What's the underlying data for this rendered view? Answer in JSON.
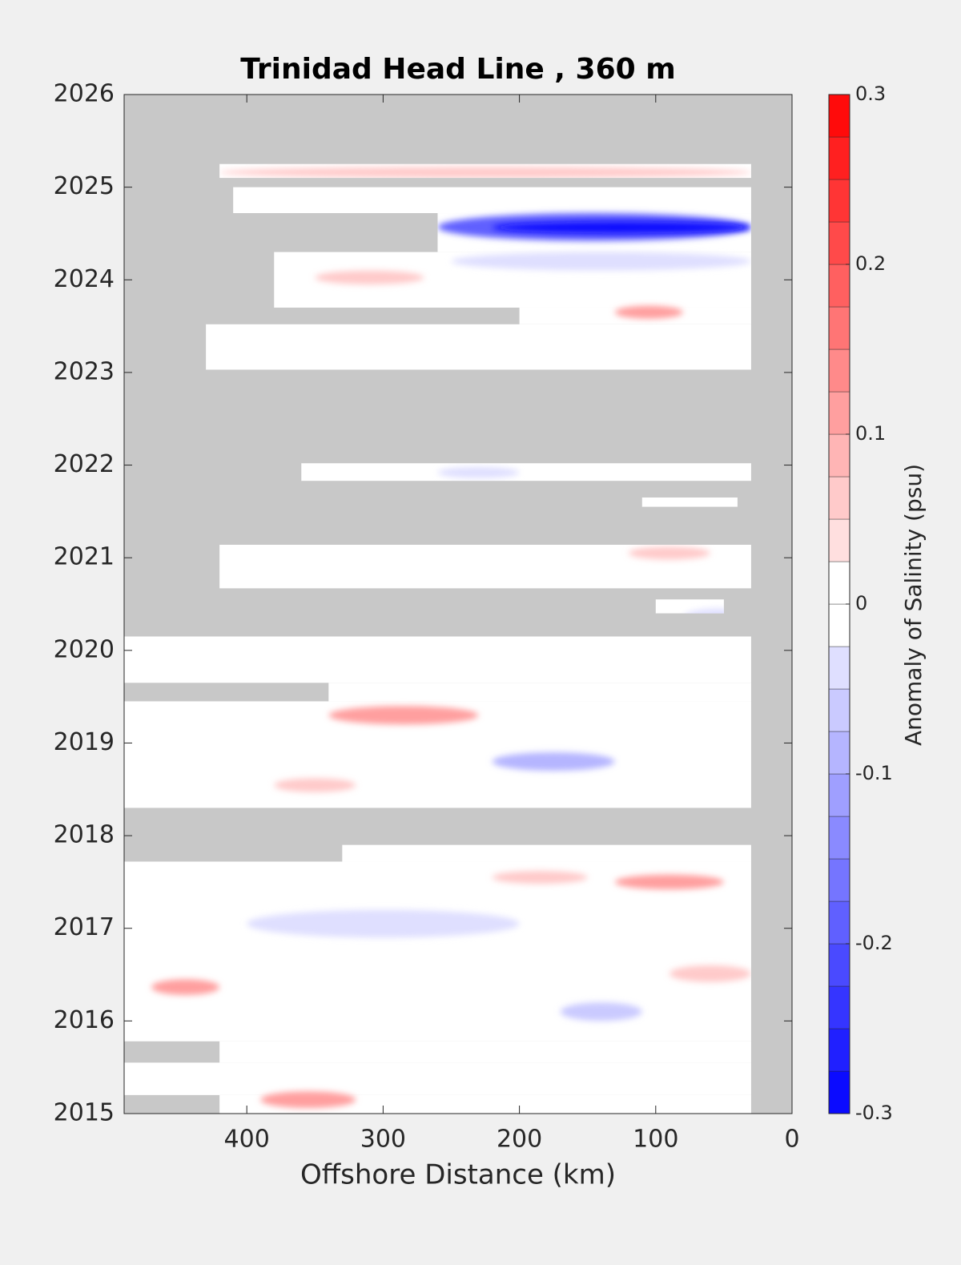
{
  "chart_data": {
    "type": "contour",
    "title": "Trinidad Head Line , 360 m",
    "xlabel": "Offshore Distance (km)",
    "colorbar_label": "Anomaly of Salinity (psu)",
    "xlim": [
      490,
      0
    ],
    "xticks": [
      400,
      300,
      200,
      100,
      0
    ],
    "ylim": [
      2015,
      2026
    ],
    "yticks": [
      2015,
      2016,
      2017,
      2018,
      2019,
      2020,
      2021,
      2022,
      2023,
      2024,
      2025,
      2026
    ],
    "clim": [
      -0.3,
      0.3
    ],
    "cticks": [
      -0.3,
      -0.2,
      -0.1,
      0,
      0.1,
      0.2,
      0.3
    ],
    "contour_step": 0.025,
    "coverage": [
      {
        "x": [
          420,
          30
        ],
        "y": [
          2015.0,
          2015.2
        ]
      },
      {
        "x": [
          490,
          30
        ],
        "y": [
          2015.2,
          2015.55
        ]
      },
      {
        "x": [
          420,
          30
        ],
        "y": [
          2015.55,
          2015.78
        ]
      },
      {
        "x": [
          490,
          30
        ],
        "y": [
          2015.78,
          2017.72
        ]
      },
      {
        "x": [
          330,
          30
        ],
        "y": [
          2017.72,
          2017.9
        ]
      },
      {
        "x": [
          490,
          30
        ],
        "y": [
          2018.3,
          2019.45
        ]
      },
      {
        "x": [
          340,
          30
        ],
        "y": [
          2019.45,
          2019.65
        ]
      },
      {
        "x": [
          490,
          30
        ],
        "y": [
          2019.65,
          2020.15
        ]
      },
      {
        "x": [
          100,
          50
        ],
        "y": [
          2020.4,
          2020.55
        ]
      },
      {
        "x": [
          420,
          30
        ],
        "y": [
          2020.67,
          2021.14
        ]
      },
      {
        "x": [
          110,
          40
        ],
        "y": [
          2021.55,
          2021.65
        ]
      },
      {
        "x": [
          360,
          30
        ],
        "y": [
          2021.83,
          2022.02
        ]
      },
      {
        "x": [
          430,
          30
        ],
        "y": [
          2023.03,
          2023.52
        ]
      },
      {
        "x": [
          200,
          30
        ],
        "y": [
          2023.52,
          2023.7
        ]
      },
      {
        "x": [
          380,
          30
        ],
        "y": [
          2023.7,
          2024.3
        ]
      },
      {
        "x": [
          260,
          30
        ],
        "y": [
          2024.3,
          2024.72
        ]
      },
      {
        "x": [
          410,
          30
        ],
        "y": [
          2024.72,
          2025.0
        ]
      },
      {
        "x": [
          420,
          30
        ],
        "y": [
          2025.1,
          2025.25
        ]
      }
    ],
    "anomalies": [
      {
        "x": [
          260,
          30
        ],
        "y": [
          2024.42,
          2024.72
        ],
        "value": -0.2
      },
      {
        "x": [
          220,
          30
        ],
        "y": [
          2024.5,
          2024.63
        ],
        "value": -0.3
      },
      {
        "x": [
          420,
          30
        ],
        "y": [
          2025.1,
          2025.22
        ],
        "value": 0.05
      },
      {
        "x": [
          250,
          30
        ],
        "y": [
          2024.1,
          2024.3
        ],
        "value": -0.05
      },
      {
        "x": [
          350,
          270
        ],
        "y": [
          2023.95,
          2024.1
        ],
        "value": 0.075
      },
      {
        "x": [
          130,
          80
        ],
        "y": [
          2023.58,
          2023.72
        ],
        "value": 0.1
      },
      {
        "x": [
          260,
          200
        ],
        "y": [
          2021.86,
          2021.98
        ],
        "value": -0.05
      },
      {
        "x": [
          120,
          60
        ],
        "y": [
          2020.98,
          2021.12
        ],
        "value": 0.075
      },
      {
        "x": [
          80,
          30
        ],
        "y": [
          2020.25,
          2020.45
        ],
        "value": -0.05
      },
      {
        "x": [
          340,
          230
        ],
        "y": [
          2019.2,
          2019.4
        ],
        "value": 0.1
      },
      {
        "x": [
          220,
          130
        ],
        "y": [
          2018.7,
          2018.9
        ],
        "value": -0.1
      },
      {
        "x": [
          380,
          320
        ],
        "y": [
          2018.47,
          2018.62
        ],
        "value": 0.075
      },
      {
        "x": [
          220,
          150
        ],
        "y": [
          2017.48,
          2017.62
        ],
        "value": 0.075
      },
      {
        "x": [
          130,
          50
        ],
        "y": [
          2017.42,
          2017.58
        ],
        "value": 0.1
      },
      {
        "x": [
          400,
          200
        ],
        "y": [
          2016.9,
          2017.2
        ],
        "value": -0.05
      },
      {
        "x": [
          90,
          30
        ],
        "y": [
          2016.42,
          2016.6
        ],
        "value": 0.075
      },
      {
        "x": [
          470,
          420
        ],
        "y": [
          2016.28,
          2016.45
        ],
        "value": 0.1
      },
      {
        "x": [
          170,
          110
        ],
        "y": [
          2016.0,
          2016.2
        ],
        "value": -0.075
      },
      {
        "x": [
          390,
          320
        ],
        "y": [
          2015.06,
          2015.24
        ],
        "value": 0.1
      }
    ]
  }
}
